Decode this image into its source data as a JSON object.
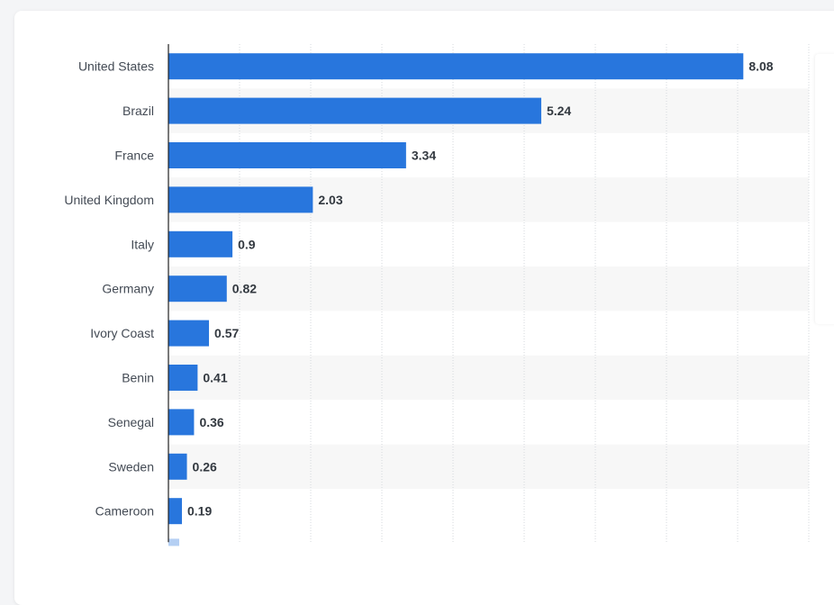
{
  "chart_data": {
    "type": "bar",
    "orientation": "horizontal",
    "categories": [
      "United States",
      "Brazil",
      "France",
      "United Kingdom",
      "Italy",
      "Germany",
      "Ivory Coast",
      "Benin",
      "Senegal",
      "Sweden",
      "Cameroon"
    ],
    "values": [
      8.08,
      5.24,
      3.34,
      2.03,
      0.9,
      0.82,
      0.57,
      0.41,
      0.36,
      0.26,
      0.19
    ],
    "value_labels": [
      "8.08",
      "5.24",
      "3.34",
      "2.03",
      "0.9",
      "0.82",
      "0.57",
      "0.41",
      "0.36",
      "0.26",
      "0.19"
    ],
    "xlim": [
      0,
      9
    ],
    "x_gridlines": [
      1,
      2,
      3,
      4,
      5,
      6,
      7,
      8,
      9
    ],
    "grid": true,
    "bar_color": "#2876dd",
    "stripe_color": "#f7f7f7"
  }
}
